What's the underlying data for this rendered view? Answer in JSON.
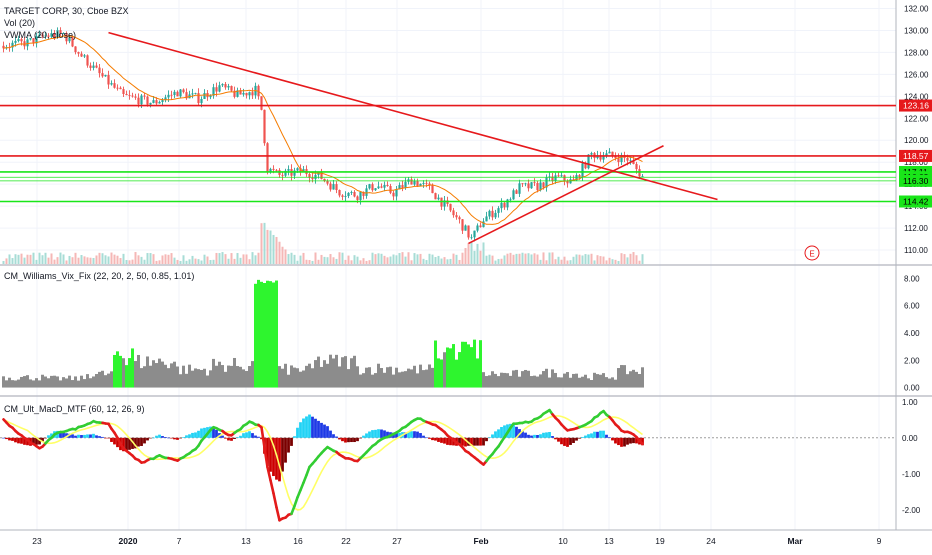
{
  "header": {
    "symbol_line": "TARGET CORP, 30, Cboe BZX",
    "volume_label": "Vol (20)",
    "vwma_label": "VWMA (20, close)"
  },
  "colors": {
    "up_candle": "#26a69a",
    "down_candle": "#ef5350",
    "vwma": "#f57c00",
    "red_line": "#e6191c",
    "green_line": "#19e619",
    "vix_high": "#2ef52e",
    "vix_low": "#8c8c8c",
    "macd_up": "#32cd32",
    "macd_down": "#e31b1b",
    "signal": "#ffff66",
    "hist_blue": "#1e3ae6",
    "hist_aqua": "#22d3f5",
    "hist_red": "#cc0000",
    "hist_maroon": "#7a0000"
  },
  "chart_data": [
    {
      "type": "candlestick",
      "title": "TARGET CORP, 30, Cboe BZX",
      "ylim": [
        109,
        132.5
      ],
      "y_ticks": [
        "132.00",
        "130.00",
        "128.00",
        "126.00",
        "124.00",
        "122.00",
        "120.00",
        "118.00",
        "116.00",
        "114.00",
        "112.00",
        "110.00"
      ],
      "x_ticks": [
        "23",
        "2020",
        "7",
        "13",
        "16",
        "22",
        "27",
        "Feb",
        "10",
        "13",
        "19",
        "24",
        "Mar",
        "9"
      ],
      "price_path": [
        {
          "bar": 0,
          "price": 128.6
        },
        {
          "bar": 8,
          "price": 128.9
        },
        {
          "bar": 14,
          "price": 129.5
        },
        {
          "bar": 20,
          "price": 129.7
        },
        {
          "bar": 25,
          "price": 128.0
        },
        {
          "bar": 32,
          "price": 126.0
        },
        {
          "bar": 40,
          "price": 124.0
        },
        {
          "bar": 50,
          "price": 123.4
        },
        {
          "bar": 58,
          "price": 124.4
        },
        {
          "bar": 65,
          "price": 123.8
        },
        {
          "bar": 72,
          "price": 124.9
        },
        {
          "bar": 78,
          "price": 124.1
        },
        {
          "bar": 84,
          "price": 124.6
        },
        {
          "bar": 86,
          "price": 122.8
        },
        {
          "bar": 88,
          "price": 117.4
        },
        {
          "bar": 92,
          "price": 116.8
        },
        {
          "bar": 100,
          "price": 117.2
        },
        {
          "bar": 106,
          "price": 116.6
        },
        {
          "bar": 112,
          "price": 115.3
        },
        {
          "bar": 118,
          "price": 115.0
        },
        {
          "bar": 124,
          "price": 115.9
        },
        {
          "bar": 130,
          "price": 115.2
        },
        {
          "bar": 136,
          "price": 116.4
        },
        {
          "bar": 142,
          "price": 115.6
        },
        {
          "bar": 148,
          "price": 113.8
        },
        {
          "bar": 152,
          "price": 112.6
        },
        {
          "bar": 156,
          "price": 111.0
        },
        {
          "bar": 160,
          "price": 112.8
        },
        {
          "bar": 166,
          "price": 114.0
        },
        {
          "bar": 172,
          "price": 115.7
        },
        {
          "bar": 178,
          "price": 115.8
        },
        {
          "bar": 184,
          "price": 116.6
        },
        {
          "bar": 190,
          "price": 116.2
        },
        {
          "bar": 196,
          "price": 118.7
        },
        {
          "bar": 202,
          "price": 118.6
        },
        {
          "bar": 208,
          "price": 118.3
        },
        {
          "bar": 213,
          "price": 116.7
        }
      ],
      "levels": [
        {
          "price": 123.16,
          "label": "123.16",
          "kind": "red"
        },
        {
          "price": 118.57,
          "label": "118.57",
          "kind": "red"
        },
        {
          "price": 117.11,
          "label": "117.11",
          "kind": "green"
        },
        {
          "price": 116.63,
          "label": "116.63",
          "kind": "green-thin"
        },
        {
          "price": 116.3,
          "label": "116.30",
          "kind": "green-thin"
        },
        {
          "price": 114.42,
          "label": "114.42",
          "kind": "green"
        }
      ],
      "trendlines": [
        {
          "from": {
            "bar": 35,
            "price": 129.8
          },
          "to": {
            "bar": 238,
            "price": 114.6
          }
        },
        {
          "from": {
            "bar": 155,
            "price": 110.6
          },
          "to": {
            "bar": 220,
            "price": 119.5
          }
        }
      ],
      "event_marker": "E"
    },
    {
      "type": "bar",
      "title": "CM_Williams_Vix_Fix (22, 20, 2, 50, 0.85, 1.01)",
      "ylim": [
        -0.4,
        8.4
      ],
      "y_ticks": [
        "8.00",
        "6.00",
        "4.00",
        "2.00",
        "0.00"
      ],
      "segments": [
        {
          "from": 0,
          "to": 14,
          "level": 0.9
        },
        {
          "from": 14,
          "to": 28,
          "level": 0.8
        },
        {
          "from": 28,
          "to": 37,
          "level": 1.2
        },
        {
          "from": 37,
          "to": 44,
          "level": 2.9
        },
        {
          "from": 44,
          "to": 58,
          "level": 2.3
        },
        {
          "from": 58,
          "to": 70,
          "level": 1.6
        },
        {
          "from": 70,
          "to": 84,
          "level": 2.0
        },
        {
          "from": 84,
          "to": 92,
          "level": 8.0
        },
        {
          "from": 92,
          "to": 104,
          "level": 1.6
        },
        {
          "from": 104,
          "to": 118,
          "level": 2.3
        },
        {
          "from": 118,
          "to": 132,
          "level": 1.7
        },
        {
          "from": 132,
          "to": 144,
          "level": 1.6
        },
        {
          "from": 144,
          "to": 160,
          "level": 3.4
        },
        {
          "from": 160,
          "to": 176,
          "level": 1.2
        },
        {
          "from": 176,
          "to": 192,
          "level": 1.3
        },
        {
          "from": 192,
          "to": 205,
          "level": 1.0
        },
        {
          "from": 205,
          "to": 215,
          "level": 1.5
        }
      ],
      "threshold": 2.6
    },
    {
      "type": "line",
      "title": "CM_Ult_MacD_MTF (60, 12, 26, 9)",
      "ylim": [
        -2.45,
        1.05
      ],
      "y_ticks": [
        "1.00",
        "0.00",
        "-1.00",
        "-2.00"
      ],
      "macd_path": [
        {
          "bar": 0,
          "value": 0.5
        },
        {
          "bar": 6,
          "value": 0.05
        },
        {
          "bar": 12,
          "value": -0.3
        },
        {
          "bar": 18,
          "value": 0.15
        },
        {
          "bar": 24,
          "value": 0.25
        },
        {
          "bar": 30,
          "value": 0.45
        },
        {
          "bar": 35,
          "value": 0.4
        },
        {
          "bar": 40,
          "value": -0.3
        },
        {
          "bar": 46,
          "value": -0.7
        },
        {
          "bar": 52,
          "value": -0.5
        },
        {
          "bar": 58,
          "value": -0.65
        },
        {
          "bar": 64,
          "value": -0.3
        },
        {
          "bar": 70,
          "value": 0.3
        },
        {
          "bar": 76,
          "value": 0.05
        },
        {
          "bar": 82,
          "value": 0.45
        },
        {
          "bar": 86,
          "value": 0.3
        },
        {
          "bar": 88,
          "value": -0.8
        },
        {
          "bar": 92,
          "value": -2.3
        },
        {
          "bar": 96,
          "value": -2.1
        },
        {
          "bar": 102,
          "value": -0.8
        },
        {
          "bar": 108,
          "value": -0.25
        },
        {
          "bar": 114,
          "value": -0.55
        },
        {
          "bar": 118,
          "value": -0.65
        },
        {
          "bar": 122,
          "value": -0.3
        },
        {
          "bar": 126,
          "value": -0.05
        },
        {
          "bar": 132,
          "value": 0.2
        },
        {
          "bar": 138,
          "value": 0.55
        },
        {
          "bar": 144,
          "value": 0.35
        },
        {
          "bar": 150,
          "value": -0.05
        },
        {
          "bar": 156,
          "value": -0.5
        },
        {
          "bar": 160,
          "value": -0.75
        },
        {
          "bar": 164,
          "value": -0.35
        },
        {
          "bar": 170,
          "value": 0.4
        },
        {
          "bar": 176,
          "value": 0.45
        },
        {
          "bar": 182,
          "value": 0.75
        },
        {
          "bar": 188,
          "value": 0.2
        },
        {
          "bar": 194,
          "value": 0.35
        },
        {
          "bar": 200,
          "value": 0.75
        },
        {
          "bar": 206,
          "value": 0.2
        },
        {
          "bar": 210,
          "value": 0.1
        },
        {
          "bar": 215,
          "value": -0.35
        }
      ],
      "signal_offset_bars": 4
    }
  ]
}
